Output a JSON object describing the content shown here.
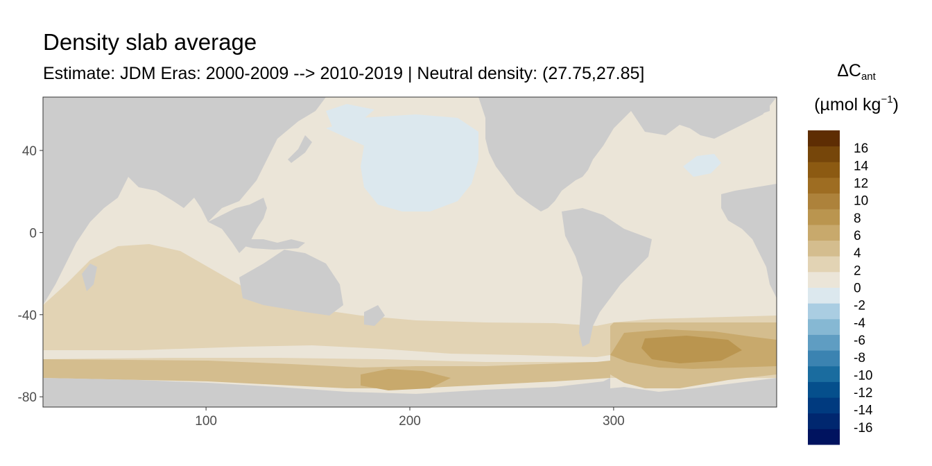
{
  "title": "Density slab average",
  "subtitle": "Estimate: JDM Eras: 2000-2009 --> 2010-2019 | Neutral density: (27.75,27.85]",
  "colors": {
    "land": "#cccccc",
    "nodata": "#ffffff",
    "panel_border": "#333333",
    "tick_text": "#4d4d4d"
  },
  "chart_data": {
    "type": "heatmap",
    "title": "Density slab average",
    "subtitle": "Estimate: JDM Eras: 2000-2009 --> 2010-2019 | Neutral density: (27.75,27.85]",
    "xlabel": "",
    "ylabel": "",
    "xlim": [
      20,
      380
    ],
    "ylim": [
      -85,
      66
    ],
    "x_ticks": [
      100,
      200,
      300
    ],
    "y_ticks": [
      40,
      0,
      -40,
      -80
    ],
    "grid": false,
    "legend": {
      "position": "right",
      "title_main": "ΔC",
      "title_sub": "ant",
      "title_unit_pre": "(µmol kg",
      "title_unit_sup": "−1",
      "title_unit_post": ")",
      "breaks": [
        -18,
        -16,
        -14,
        -12,
        -10,
        -8,
        -6,
        -4,
        -2,
        0,
        2,
        4,
        6,
        8,
        10,
        12,
        14,
        16,
        18
      ],
      "labels": [
        16,
        14,
        12,
        10,
        8,
        6,
        4,
        2,
        0,
        -2,
        -4,
        -6,
        -8,
        -10,
        -12,
        -14,
        -16
      ],
      "colors": [
        "#00135f",
        "#00276f",
        "#003a7f",
        "#054f8c",
        "#1a6c9f",
        "#3b83b1",
        "#5f9dc2",
        "#86b8d3",
        "#aacde2",
        "#dce8ee",
        "#ebe5d8",
        "#e2d3b4",
        "#d4bd8e",
        "#c8a96c",
        "#ba954f",
        "#ad823b",
        "#9e6d22",
        "#8c5a12",
        "#76460a",
        "#5e2d03"
      ]
    },
    "values_description_regions": [
      {
        "region": "North Pacific subpolar/central gyre",
        "range": "-2 to 0"
      },
      {
        "region": "Labrador / North Atlantic patch",
        "range": "-2 to 0"
      },
      {
        "region": "Pacific and North Atlantic interior",
        "range": "0 to 2"
      },
      {
        "region": "Southern Indian Ocean",
        "range": "2 to 4"
      },
      {
        "region": "Southern Ocean Pacific sector",
        "range": "2 to 6"
      },
      {
        "region": "Weddell / South Atlantic sector",
        "range": "6 to 8"
      }
    ]
  }
}
